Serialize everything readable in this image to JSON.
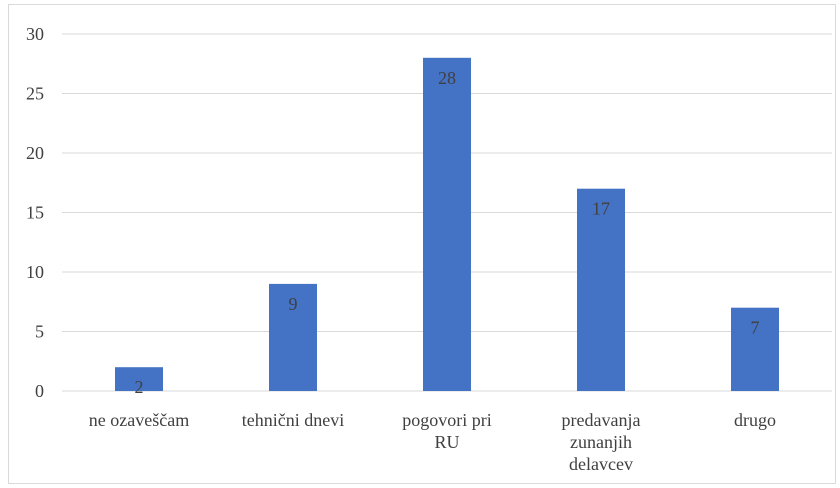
{
  "chart_data": {
    "type": "bar",
    "categories": [
      [
        "ne ozaveščam"
      ],
      [
        "tehnični dnevi"
      ],
      [
        "pogovori pri",
        "RU"
      ],
      [
        "predavanja",
        "zunanjih",
        "delavcev"
      ],
      [
        "drugo"
      ]
    ],
    "values": [
      2,
      9,
      28,
      17,
      7
    ],
    "data_labels": [
      "2",
      "9",
      "28",
      "17",
      "7"
    ],
    "yticks": [
      "0",
      "5",
      "10",
      "15",
      "20",
      "25",
      "30"
    ],
    "ylim": [
      0,
      30
    ],
    "grid": true,
    "bar_color": "#4472C4",
    "gridline_color": "#d9d9d9",
    "text_color": "#404040",
    "title": "",
    "xlabel": "",
    "ylabel": ""
  }
}
